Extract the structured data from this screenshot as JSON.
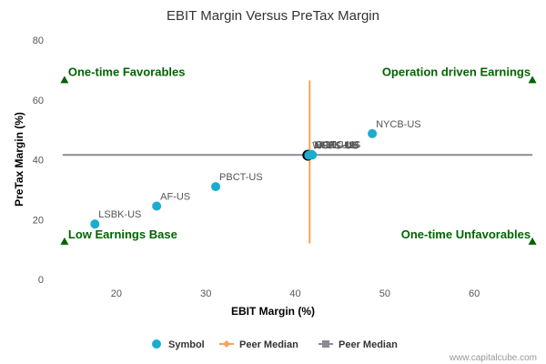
{
  "chart_data": {
    "type": "scatter",
    "title": "EBIT Margin Versus PreTax Margin",
    "xlabel": "EBIT Margin (%)",
    "ylabel": "PreTax Margin (%)",
    "xlim": [
      13.5,
      67
    ],
    "ylim": [
      0,
      80
    ],
    "x_ticks": [
      20,
      30,
      40,
      50,
      60
    ],
    "y_ticks": [
      0,
      20,
      40,
      60,
      80
    ],
    "grid": false,
    "points": [
      {
        "label": "NYCB-US",
        "x": 48.6,
        "y": 48.7
      },
      {
        "label": "PBCT-US",
        "x": 31.1,
        "y": 31.0
      },
      {
        "label": "AF-US",
        "x": 24.5,
        "y": 24.5
      },
      {
        "label": "LSBK-US",
        "x": 17.6,
        "y": 18.5
      },
      {
        "label": "TFSL-US",
        "x": 41.6,
        "y": 41.6
      },
      {
        "label": "NFBK-US",
        "x": 41.7,
        "y": 41.7
      },
      {
        "label": "OCFC-US",
        "x": 41.8,
        "y": 41.8
      },
      {
        "label": "BRKL-US",
        "x": 41.9,
        "y": 41.6
      },
      {
        "label": "WSFS-US",
        "x": 41.5,
        "y": 41.5
      }
    ],
    "highlight_point": {
      "x": 41.4,
      "y": 41.5
    },
    "peer_median_x": 41.6,
    "peer_median_y": 41.6,
    "quadrant_labels": {
      "top_left": "One-time Favorables",
      "top_right": "Operation driven Earnings",
      "bottom_left": "Low Earnings Base",
      "bottom_right": "One-time Unfavorables"
    },
    "legend": [
      {
        "name": "Symbol",
        "marker": "circle",
        "color": "#1aadce"
      },
      {
        "name": "Peer Median",
        "marker": "diamond-line",
        "color": "#f7a35c"
      },
      {
        "name": "Peer Median",
        "marker": "square-line",
        "color": "#8b8b94"
      }
    ],
    "legend_position": "bottom",
    "colors": {
      "symbol": "#1aadce",
      "peer_median_vertical": "#f7a35c",
      "peer_median_horizontal": "#8b8b94",
      "quadrant": "#006400"
    }
  },
  "credit": "www.capitalcube.com"
}
